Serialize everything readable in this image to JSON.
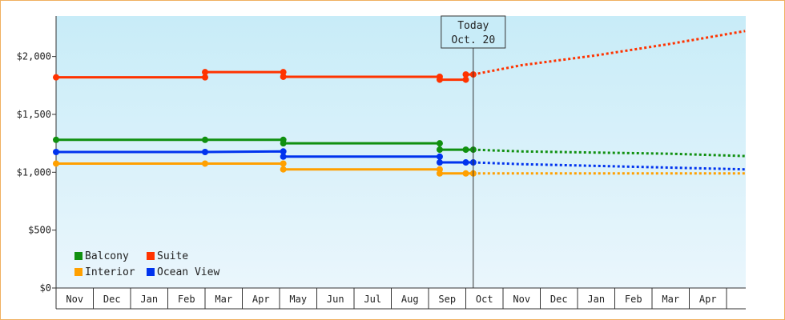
{
  "chart_data": {
    "type": "line",
    "y_axis": {
      "min": 0,
      "max": 2350,
      "ticks": [
        0,
        500,
        1000,
        1500,
        2000
      ],
      "tick_labels": [
        "$0",
        "$500",
        "$1,000",
        "$1,500",
        "$2,000"
      ]
    },
    "x_axis": {
      "labels": [
        "Nov",
        "Dec",
        "Jan",
        "Feb",
        "Mar",
        "Apr",
        "May",
        "Jun",
        "Jul",
        "Aug",
        "Sep",
        "Oct",
        "Nov",
        "Dec",
        "Jan",
        "Feb",
        "Mar",
        "Apr"
      ]
    },
    "today_marker": {
      "line1": "Today",
      "line2": "Oct. 20",
      "x": 11.2
    },
    "legend": [
      {
        "name": "Balcony",
        "color": "#109010"
      },
      {
        "name": "Suite",
        "color": "#ff3300"
      },
      {
        "name": "Interior",
        "color": "#ffa000"
      },
      {
        "name": "Ocean View",
        "color": "#0033ee"
      }
    ],
    "series": [
      {
        "name": "Suite",
        "color": "#ff3300",
        "history": [
          [
            0,
            1820
          ],
          [
            4,
            1820
          ],
          [
            4,
            1865
          ],
          [
            6.1,
            1865
          ],
          [
            6.1,
            1825
          ],
          [
            10.3,
            1825
          ],
          [
            10.3,
            1800
          ],
          [
            11,
            1800
          ],
          [
            11,
            1845
          ],
          [
            11.2,
            1845
          ]
        ],
        "points": [
          [
            0,
            1820
          ],
          [
            4,
            1820
          ],
          [
            4,
            1865
          ],
          [
            6.1,
            1865
          ],
          [
            6.1,
            1825
          ],
          [
            10.3,
            1825
          ],
          [
            10.3,
            1800
          ],
          [
            11,
            1800
          ],
          [
            11,
            1845
          ],
          [
            11.2,
            1845
          ]
        ],
        "forecast": [
          [
            11.2,
            1845
          ],
          [
            12.5,
            1925
          ],
          [
            14.5,
            2010
          ],
          [
            16.5,
            2110
          ],
          [
            18.5,
            2220
          ]
        ]
      },
      {
        "name": "Balcony",
        "color": "#109010",
        "history": [
          [
            0,
            1280
          ],
          [
            4,
            1280
          ],
          [
            6.1,
            1280
          ],
          [
            6.1,
            1250
          ],
          [
            10.3,
            1250
          ],
          [
            10.3,
            1195
          ],
          [
            11,
            1195
          ],
          [
            11.2,
            1195
          ]
        ],
        "points": [
          [
            0,
            1280
          ],
          [
            4,
            1280
          ],
          [
            6.1,
            1280
          ],
          [
            6.1,
            1250
          ],
          [
            10.3,
            1250
          ],
          [
            10.3,
            1195
          ],
          [
            11,
            1195
          ],
          [
            11.2,
            1195
          ]
        ],
        "forecast": [
          [
            11.2,
            1195
          ],
          [
            12.5,
            1180
          ],
          [
            14.5,
            1170
          ],
          [
            16.5,
            1160
          ],
          [
            18.5,
            1140
          ]
        ]
      },
      {
        "name": "Ocean View",
        "color": "#0033ee",
        "history": [
          [
            0,
            1175
          ],
          [
            4,
            1175
          ],
          [
            6.1,
            1180
          ],
          [
            6.1,
            1135
          ],
          [
            10.3,
            1135
          ],
          [
            10.3,
            1085
          ],
          [
            11,
            1085
          ],
          [
            11.2,
            1085
          ]
        ],
        "points": [
          [
            0,
            1175
          ],
          [
            4,
            1175
          ],
          [
            6.1,
            1180
          ],
          [
            6.1,
            1135
          ],
          [
            10.3,
            1135
          ],
          [
            10.3,
            1085
          ],
          [
            11,
            1085
          ],
          [
            11.2,
            1085
          ]
        ],
        "forecast": [
          [
            11.2,
            1085
          ],
          [
            12.5,
            1070
          ],
          [
            14.5,
            1055
          ],
          [
            16.5,
            1040
          ],
          [
            18.5,
            1025
          ]
        ]
      },
      {
        "name": "Interior",
        "color": "#ffa000",
        "history": [
          [
            0,
            1075
          ],
          [
            4,
            1075
          ],
          [
            6.1,
            1075
          ],
          [
            6.1,
            1025
          ],
          [
            10.3,
            1025
          ],
          [
            10.3,
            990
          ],
          [
            11,
            990
          ],
          [
            11.2,
            990
          ]
        ],
        "points": [
          [
            0,
            1075
          ],
          [
            4,
            1075
          ],
          [
            6.1,
            1075
          ],
          [
            6.1,
            1025
          ],
          [
            10.3,
            1025
          ],
          [
            10.3,
            990
          ],
          [
            11,
            990
          ],
          [
            11.2,
            990
          ]
        ],
        "forecast": [
          [
            11.2,
            990
          ],
          [
            14.5,
            990
          ],
          [
            18.5,
            990
          ]
        ]
      }
    ]
  }
}
